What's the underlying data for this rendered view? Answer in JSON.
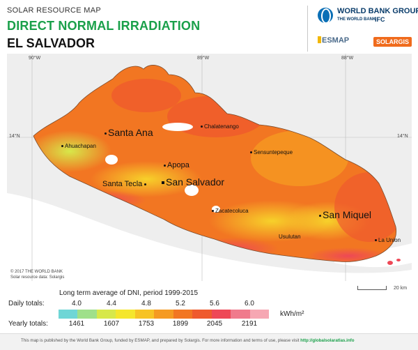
{
  "header": {
    "kicker": "SOLAR RESOURCE MAP",
    "title": "DIRECT NORMAL IRRADIATION",
    "country": "EL SALVADOR"
  },
  "logos": {
    "world_bank": "WORLD BANK GROUP",
    "world_bank_sub": "THE WORLD BANK",
    "ifc": "IFC",
    "esmap": "ESMAP",
    "solargis": "SOLARGIS"
  },
  "map": {
    "grid": {
      "longitudes": [
        "90°W",
        "89°W",
        "88°W"
      ],
      "latitude_left": "14°N",
      "latitude_right": "14°N"
    },
    "cities": [
      {
        "name": "Santa Ana"
      },
      {
        "name": "Chalatenango"
      },
      {
        "name": "Ahuachapan"
      },
      {
        "name": "Sensuntepeque"
      },
      {
        "name": "Apopa"
      },
      {
        "name": "Santa Tecla"
      },
      {
        "name": "San Salvador"
      },
      {
        "name": "Zacatecoluca"
      },
      {
        "name": "San Miquel"
      },
      {
        "name": "Usulutan"
      },
      {
        "name": "La Union"
      }
    ],
    "copyright_line1": "© 2017 THE WORLD BANK",
    "copyright_line2": "Solar resource data: Solargis",
    "scale_label": "20 km"
  },
  "legend": {
    "caption": "Long term average of DNI, period 1999-2015",
    "daily_label": "Daily totals:",
    "yearly_label": "Yearly totals:",
    "unit": "kWh/m²",
    "daily_ticks": [
      "4.0",
      "4.4",
      "4.8",
      "5.2",
      "5.6",
      "6.0"
    ],
    "yearly_ticks": [
      "1461",
      "1607",
      "1753",
      "1899",
      "2045",
      "2191"
    ],
    "colors": [
      "#6fd6d6",
      "#9fe08a",
      "#d7e84a",
      "#f5e62c",
      "#f7c325",
      "#f59a22",
      "#f27622",
      "#ef5a2d",
      "#ee4856",
      "#f07a8c",
      "#f6a7b3"
    ]
  },
  "footer": {
    "text": "This map is published by the World Bank Group, funded by ESMAP, and prepared by Solargis. For more information and terms of use, please visit",
    "link": "http://globalsolaratlas.info"
  }
}
